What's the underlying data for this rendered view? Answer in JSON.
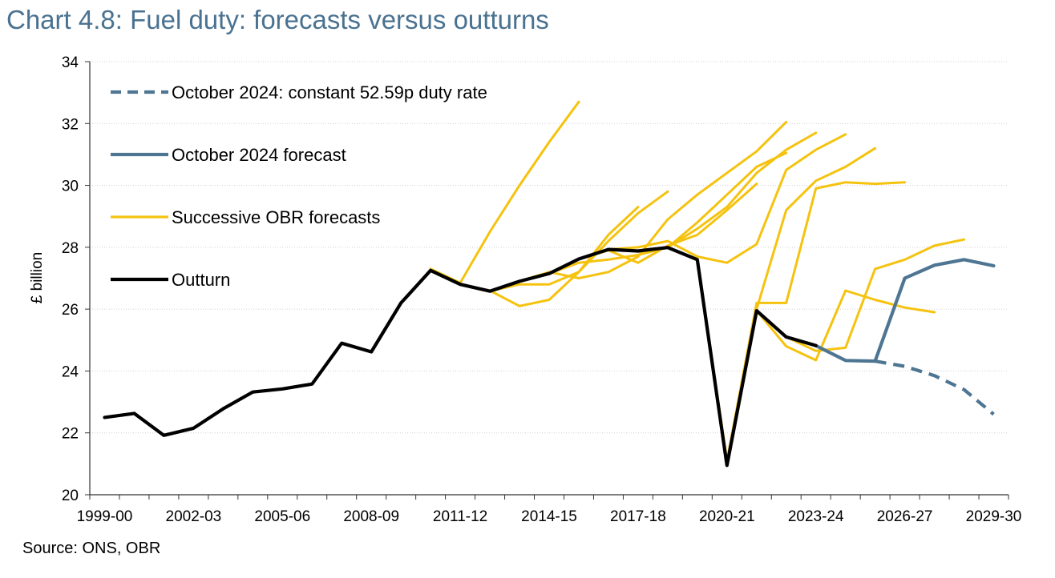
{
  "title": "Chart 4.8: Fuel duty: forecasts versus outturns",
  "source": "Source: ONS, OBR",
  "colors": {
    "title": "#4a7290",
    "forecast_blue": "#4e7592",
    "successive": "#f5c30f",
    "outturn": "#000000",
    "grid": "#cfcfcf"
  },
  "chart_data": {
    "type": "line",
    "title": "Chart 4.8: Fuel duty: forecasts versus outturns",
    "xlabel": "",
    "ylabel": "£ billion",
    "ylim": [
      20,
      34
    ],
    "yticks": [
      20,
      22,
      24,
      26,
      28,
      30,
      32,
      34
    ],
    "categories": [
      "1999-00",
      "2000-01",
      "2001-02",
      "2002-03",
      "2003-04",
      "2004-05",
      "2005-06",
      "2006-07",
      "2007-08",
      "2008-09",
      "2009-10",
      "2010-11",
      "2011-12",
      "2012-13",
      "2013-14",
      "2014-15",
      "2015-16",
      "2016-17",
      "2017-18",
      "2018-19",
      "2019-20",
      "2020-21",
      "2021-22",
      "2022-23",
      "2023-24",
      "2024-25",
      "2025-26",
      "2026-27",
      "2027-28",
      "2028-29",
      "2029-30"
    ],
    "xtick_labels": [
      "1999-00",
      "2002-03",
      "2005-06",
      "2008-09",
      "2011-12",
      "2014-15",
      "2017-18",
      "2020-21",
      "2023-24",
      "2026-27",
      "2029-30"
    ],
    "grid": "horizontal",
    "legend_position": "top-left",
    "legend": [
      {
        "key": "constant",
        "label": "October 2024: constant 52.59p duty rate",
        "style": "dashed"
      },
      {
        "key": "forecast",
        "label": "October 2024 forecast",
        "style": "solid"
      },
      {
        "key": "successive",
        "label": "Successive OBR forecasts",
        "style": "solid"
      },
      {
        "key": "outturn",
        "label": "Outturn",
        "style": "solid"
      }
    ],
    "series": [
      {
        "name": "Outturn",
        "key": "outturn",
        "points": [
          [
            0,
            22.5
          ],
          [
            1,
            22.63
          ],
          [
            2,
            21.92
          ],
          [
            3,
            22.15
          ],
          [
            4,
            22.78
          ],
          [
            5,
            23.32
          ],
          [
            6,
            23.42
          ],
          [
            7,
            23.58
          ],
          [
            8,
            24.9
          ],
          [
            9,
            24.62
          ],
          [
            10,
            26.2
          ],
          [
            11,
            27.25
          ],
          [
            12,
            26.8
          ],
          [
            13,
            26.58
          ],
          [
            14,
            26.9
          ],
          [
            15,
            27.15
          ],
          [
            16,
            27.62
          ],
          [
            17,
            27.93
          ],
          [
            18,
            27.88
          ],
          [
            19,
            27.99
          ],
          [
            20,
            27.6
          ],
          [
            21,
            20.95
          ],
          [
            22,
            25.95
          ],
          [
            23,
            25.1
          ],
          [
            24,
            24.82
          ]
        ]
      },
      {
        "name": "October 2024 forecast",
        "key": "forecast",
        "points": [
          [
            24,
            24.82
          ],
          [
            25,
            24.34
          ],
          [
            26,
            24.32
          ],
          [
            27,
            27.0
          ],
          [
            28,
            27.42
          ],
          [
            29,
            27.6
          ],
          [
            30,
            27.4
          ]
        ]
      },
      {
        "name": "October 2024: constant 52.59p duty rate",
        "key": "constant",
        "points": [
          [
            26,
            24.32
          ],
          [
            27,
            24.15
          ],
          [
            28,
            23.85
          ],
          [
            29,
            23.4
          ],
          [
            30,
            22.6
          ]
        ]
      },
      {
        "key": "successive",
        "points": [
          [
            11,
            27.3
          ],
          [
            12,
            26.85
          ],
          [
            13,
            28.5
          ],
          [
            14,
            30.0
          ],
          [
            15,
            31.4
          ],
          [
            16,
            32.7
          ]
        ]
      },
      {
        "key": "successive",
        "points": [
          [
            12,
            26.8
          ],
          [
            13,
            26.6
          ],
          [
            14,
            26.1
          ],
          [
            15,
            26.3
          ],
          [
            16,
            27.2
          ],
          [
            17,
            28.4
          ],
          [
            18,
            29.3
          ]
        ]
      },
      {
        "key": "successive",
        "points": [
          [
            13,
            26.58
          ],
          [
            14,
            26.8
          ],
          [
            15,
            26.8
          ],
          [
            16,
            27.2
          ],
          [
            17,
            28.2
          ],
          [
            18,
            29.1
          ],
          [
            19,
            29.8
          ]
        ]
      },
      {
        "key": "successive",
        "points": [
          [
            14,
            26.9
          ],
          [
            15,
            27.2
          ],
          [
            16,
            27.0
          ],
          [
            17,
            27.2
          ],
          [
            18,
            27.7
          ],
          [
            19,
            28.9
          ],
          [
            20,
            29.7
          ],
          [
            21,
            30.4
          ],
          [
            22,
            31.1
          ],
          [
            23,
            32.05
          ]
        ]
      },
      {
        "key": "successive",
        "points": [
          [
            15,
            27.15
          ],
          [
            16,
            27.5
          ],
          [
            17,
            27.6
          ],
          [
            18,
            27.75
          ],
          [
            19,
            28.0
          ],
          [
            20,
            28.6
          ],
          [
            21,
            29.3
          ],
          [
            22,
            30.4
          ],
          [
            23,
            31.15
          ],
          [
            24,
            31.7
          ]
        ]
      },
      {
        "key": "successive",
        "points": [
          [
            16,
            27.62
          ],
          [
            17,
            27.9
          ],
          [
            18,
            27.5
          ],
          [
            19,
            28.05
          ],
          [
            20,
            28.4
          ],
          [
            21,
            29.2
          ],
          [
            22,
            30.05
          ]
        ]
      },
      {
        "key": "successive",
        "points": [
          [
            17,
            27.93
          ],
          [
            18,
            28.0
          ],
          [
            19,
            28.2
          ],
          [
            20,
            27.7
          ],
          [
            21,
            27.5
          ],
          [
            22,
            28.1
          ],
          [
            23,
            30.5
          ],
          [
            24,
            31.15
          ],
          [
            25,
            31.65
          ]
        ]
      },
      {
        "key": "successive",
        "points": [
          [
            19,
            27.99
          ],
          [
            20,
            28.8
          ],
          [
            21,
            29.7
          ],
          [
            22,
            30.6
          ],
          [
            23,
            31.05
          ]
        ]
      },
      {
        "key": "successive",
        "points": [
          [
            20,
            27.6
          ],
          [
            21,
            21.1
          ],
          [
            22,
            26.2
          ],
          [
            23,
            26.2
          ],
          [
            24,
            29.9
          ],
          [
            25,
            30.1
          ],
          [
            26,
            30.05
          ],
          [
            27,
            30.1
          ]
        ]
      },
      {
        "key": "successive",
        "points": [
          [
            21,
            21.0
          ],
          [
            22,
            26.0
          ],
          [
            23,
            29.2
          ],
          [
            24,
            30.15
          ],
          [
            25,
            30.6
          ],
          [
            26,
            31.2
          ]
        ]
      },
      {
        "key": "successive",
        "points": [
          [
            22,
            25.95
          ],
          [
            23,
            24.8
          ],
          [
            24,
            24.35
          ],
          [
            25,
            26.6
          ],
          [
            26,
            26.3
          ],
          [
            27,
            26.05
          ],
          [
            28,
            25.9
          ]
        ]
      },
      {
        "key": "successive",
        "points": [
          [
            23,
            25.1
          ],
          [
            24,
            24.65
          ],
          [
            25,
            24.75
          ],
          [
            26,
            27.3
          ],
          [
            27,
            27.6
          ],
          [
            28,
            28.05
          ],
          [
            29,
            28.25
          ]
        ]
      }
    ]
  }
}
